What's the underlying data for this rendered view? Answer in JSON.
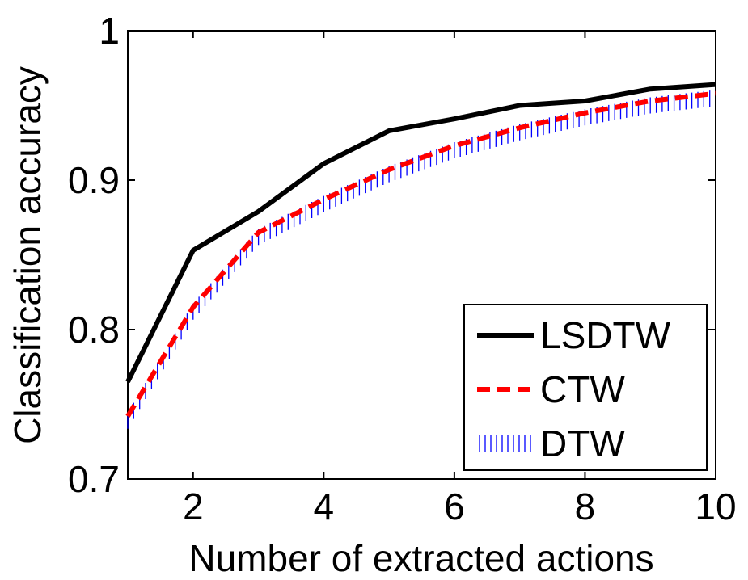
{
  "chart_data": {
    "type": "line",
    "xlabel": "Number of extracted actions",
    "ylabel": "Classification accuracy",
    "xlim": [
      1,
      10
    ],
    "ylim": [
      0.7,
      1.0
    ],
    "xticks": [
      2,
      4,
      6,
      8,
      10
    ],
    "yticks": [
      0.7,
      0.8,
      0.9,
      1.0
    ],
    "ytick_labels": [
      "0.7",
      "0.8",
      "0.9",
      "1"
    ],
    "grid": false,
    "legend_position": "bottom-right",
    "x": [
      1,
      2,
      3,
      4,
      5,
      6,
      7,
      8,
      9,
      10
    ],
    "series": [
      {
        "name": "LSDTW",
        "color": "#000000",
        "style": "solid",
        "values": [
          0.765,
          0.853,
          0.879,
          0.911,
          0.933,
          0.941,
          0.95,
          0.953,
          0.961,
          0.964
        ]
      },
      {
        "name": "CTW",
        "color": "#ff0000",
        "style": "dashed",
        "values": [
          0.742,
          0.815,
          0.865,
          0.887,
          0.907,
          0.923,
          0.935,
          0.945,
          0.953,
          0.958
        ]
      },
      {
        "name": "DTW",
        "color": "#0000ff",
        "style": "hatched",
        "values": [
          0.739,
          0.812,
          0.862,
          0.884,
          0.904,
          0.92,
          0.932,
          0.942,
          0.95,
          0.955
        ]
      }
    ]
  }
}
